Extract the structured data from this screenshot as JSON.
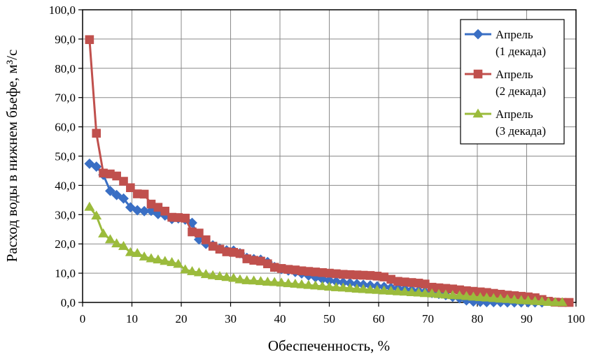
{
  "chart_data": {
    "type": "line",
    "xlabel": "Обеспеченность, %",
    "ylabel": "Расход воды в нижнем бьефе, м³/с",
    "xlim": [
      0,
      100
    ],
    "ylim": [
      0,
      100
    ],
    "x_ticks": [
      "0",
      "10",
      "20",
      "30",
      "40",
      "50",
      "60",
      "70",
      "80",
      "90",
      "100"
    ],
    "y_ticks": [
      "0,0",
      "10,0",
      "20,0",
      "30,0",
      "40,0",
      "50,0",
      "60,0",
      "70,0",
      "80,0",
      "90,0",
      "100,0"
    ],
    "grid": true,
    "legend_position": "top-right",
    "series": [
      {
        "name": "Апрель (1 декада)",
        "legend_lines": [
          "Апрель",
          "(1 декада)"
        ],
        "color": "#3a6fc4",
        "marker": "diamond",
        "points": [
          [
            1.4,
            47.4
          ],
          [
            2.8,
            46.4
          ],
          [
            4.2,
            43.6
          ],
          [
            5.6,
            38.1
          ],
          [
            6.9,
            36.7
          ],
          [
            8.3,
            35.5
          ],
          [
            9.7,
            32.5
          ],
          [
            11.1,
            31.5
          ],
          [
            12.5,
            31.2
          ],
          [
            13.9,
            31.3
          ],
          [
            15.3,
            30.2
          ],
          [
            16.7,
            29.7
          ],
          [
            18.1,
            28.5
          ],
          [
            19.4,
            28.7
          ],
          [
            20.8,
            28.3
          ],
          [
            22.2,
            27.2
          ],
          [
            23.6,
            21.5
          ],
          [
            25.0,
            20.0
          ],
          [
            26.4,
            19.5
          ],
          [
            27.8,
            18.4
          ],
          [
            29.2,
            17.8
          ],
          [
            30.6,
            17.7
          ],
          [
            31.9,
            16.8
          ],
          [
            33.3,
            15.2
          ],
          [
            34.7,
            14.8
          ],
          [
            36.1,
            14.6
          ],
          [
            37.5,
            13.8
          ],
          [
            38.9,
            12.1
          ],
          [
            40.3,
            11.4
          ],
          [
            41.7,
            10.9
          ],
          [
            43.1,
            10.4
          ],
          [
            44.4,
            9.9
          ],
          [
            45.8,
            9.2
          ],
          [
            47.2,
            8.6
          ],
          [
            48.6,
            8.0
          ],
          [
            50.0,
            7.5
          ],
          [
            51.4,
            7.1
          ],
          [
            52.8,
            6.8
          ],
          [
            54.2,
            6.6
          ],
          [
            55.6,
            6.3
          ],
          [
            56.9,
            6.0
          ],
          [
            58.3,
            5.8
          ],
          [
            59.7,
            5.5
          ],
          [
            61.1,
            5.3
          ],
          [
            62.5,
            5.0
          ],
          [
            63.9,
            4.8
          ],
          [
            65.3,
            4.5
          ],
          [
            66.7,
            4.2
          ],
          [
            68.1,
            3.9
          ],
          [
            69.4,
            3.6
          ],
          [
            70.8,
            3.2
          ],
          [
            72.2,
            2.9
          ],
          [
            73.6,
            2.5
          ],
          [
            75.0,
            1.9
          ],
          [
            76.4,
            1.4
          ],
          [
            77.8,
            0.7
          ],
          [
            79.2,
            0.3
          ],
          [
            80.6,
            0.2
          ],
          [
            81.9,
            0.1
          ],
          [
            83.3,
            0.1
          ],
          [
            84.7,
            0.1
          ],
          [
            86.1,
            0.0
          ],
          [
            87.5,
            0.0
          ],
          [
            88.9,
            0.0
          ],
          [
            90.3,
            0.0
          ],
          [
            91.7,
            0.0
          ],
          [
            93.1,
            0.0
          ]
        ]
      },
      {
        "name": "Апрель (2 декада)",
        "legend_lines": [
          "Апрель",
          "(2 декада)"
        ],
        "color": "#c0504d",
        "marker": "square",
        "points": [
          [
            1.4,
            89.8
          ],
          [
            2.8,
            57.8
          ],
          [
            4.2,
            44.2
          ],
          [
            5.6,
            43.9
          ],
          [
            6.9,
            43.2
          ],
          [
            8.3,
            41.4
          ],
          [
            9.7,
            39.2
          ],
          [
            11.1,
            37.1
          ],
          [
            12.5,
            37.0
          ],
          [
            13.9,
            33.6
          ],
          [
            15.3,
            32.5
          ],
          [
            16.7,
            31.2
          ],
          [
            18.1,
            29.1
          ],
          [
            19.4,
            29.0
          ],
          [
            20.8,
            28.8
          ],
          [
            22.2,
            24.1
          ],
          [
            23.6,
            23.7
          ],
          [
            25.0,
            21.4
          ],
          [
            26.4,
            19.2
          ],
          [
            27.8,
            18.2
          ],
          [
            29.2,
            17.3
          ],
          [
            30.6,
            17.1
          ],
          [
            31.9,
            16.7
          ],
          [
            33.3,
            14.9
          ],
          [
            34.7,
            14.4
          ],
          [
            36.1,
            14.1
          ],
          [
            37.5,
            13.2
          ],
          [
            38.9,
            12.0
          ],
          [
            40.3,
            11.6
          ],
          [
            41.7,
            11.3
          ],
          [
            43.1,
            11.1
          ],
          [
            44.4,
            10.8
          ],
          [
            45.8,
            10.6
          ],
          [
            47.2,
            10.4
          ],
          [
            48.6,
            10.2
          ],
          [
            50.0,
            10.0
          ],
          [
            51.4,
            9.8
          ],
          [
            52.8,
            9.6
          ],
          [
            54.2,
            9.5
          ],
          [
            55.6,
            9.4
          ],
          [
            56.9,
            9.3
          ],
          [
            58.3,
            9.2
          ],
          [
            59.7,
            9.0
          ],
          [
            61.1,
            8.7
          ],
          [
            62.5,
            7.9
          ],
          [
            63.9,
            7.2
          ],
          [
            65.3,
            7.0
          ],
          [
            66.7,
            6.8
          ],
          [
            68.1,
            6.6
          ],
          [
            69.4,
            6.3
          ],
          [
            70.8,
            5.2
          ],
          [
            72.2,
            5.0
          ],
          [
            73.6,
            4.8
          ],
          [
            75.0,
            4.6
          ],
          [
            76.4,
            4.3
          ],
          [
            77.8,
            4.0
          ],
          [
            79.2,
            3.8
          ],
          [
            80.6,
            3.6
          ],
          [
            81.9,
            3.4
          ],
          [
            83.3,
            3.1
          ],
          [
            84.7,
            2.8
          ],
          [
            86.1,
            2.5
          ],
          [
            87.5,
            2.3
          ],
          [
            88.9,
            2.1
          ],
          [
            90.3,
            1.9
          ],
          [
            91.7,
            1.6
          ],
          [
            93.1,
            1.0
          ],
          [
            94.4,
            0.4
          ],
          [
            95.8,
            0.1
          ],
          [
            97.2,
            0.0
          ],
          [
            98.6,
            0.0
          ]
        ]
      },
      {
        "name": "Апрель (3 декада)",
        "legend_lines": [
          "Апрель",
          "(3 декада)"
        ],
        "color": "#9bbb3c",
        "marker": "triangle",
        "points": [
          [
            1.4,
            32.6
          ],
          [
            2.8,
            29.6
          ],
          [
            4.2,
            23.5
          ],
          [
            5.6,
            21.5
          ],
          [
            6.9,
            20.1
          ],
          [
            8.3,
            19.2
          ],
          [
            9.7,
            17.1
          ],
          [
            11.1,
            16.8
          ],
          [
            12.5,
            15.6
          ],
          [
            13.9,
            15.0
          ],
          [
            15.3,
            14.6
          ],
          [
            16.7,
            14.1
          ],
          [
            18.1,
            13.7
          ],
          [
            19.4,
            13.1
          ],
          [
            20.8,
            11.2
          ],
          [
            22.2,
            10.6
          ],
          [
            23.6,
            10.2
          ],
          [
            25.0,
            9.6
          ],
          [
            26.4,
            9.2
          ],
          [
            27.8,
            8.9
          ],
          [
            29.2,
            8.6
          ],
          [
            30.6,
            8.3
          ],
          [
            31.9,
            7.8
          ],
          [
            33.3,
            7.5
          ],
          [
            34.7,
            7.4
          ],
          [
            36.1,
            7.2
          ],
          [
            37.5,
            7.0
          ],
          [
            38.9,
            6.9
          ],
          [
            40.3,
            6.7
          ],
          [
            41.7,
            6.5
          ],
          [
            43.1,
            6.3
          ],
          [
            44.4,
            6.1
          ],
          [
            45.8,
            5.9
          ],
          [
            47.2,
            5.7
          ],
          [
            48.6,
            5.5
          ],
          [
            50.0,
            5.3
          ],
          [
            51.4,
            5.1
          ],
          [
            52.8,
            5.0
          ],
          [
            54.2,
            4.8
          ],
          [
            55.6,
            4.6
          ],
          [
            56.9,
            4.5
          ],
          [
            58.3,
            4.3
          ],
          [
            59.7,
            4.2
          ],
          [
            61.1,
            4.0
          ],
          [
            62.5,
            3.9
          ],
          [
            63.9,
            3.7
          ],
          [
            65.3,
            3.6
          ],
          [
            66.7,
            3.4
          ],
          [
            68.1,
            3.3
          ],
          [
            69.4,
            3.1
          ],
          [
            70.8,
            3.0
          ],
          [
            72.2,
            2.8
          ],
          [
            73.6,
            2.6
          ],
          [
            75.0,
            2.4
          ],
          [
            76.4,
            2.3
          ],
          [
            77.8,
            2.1
          ],
          [
            79.2,
            1.9
          ],
          [
            80.6,
            1.7
          ],
          [
            81.9,
            1.6
          ],
          [
            83.3,
            1.4
          ],
          [
            84.7,
            1.2
          ],
          [
            86.1,
            1.1
          ],
          [
            87.5,
            0.9
          ],
          [
            88.9,
            0.7
          ],
          [
            90.3,
            0.6
          ],
          [
            91.7,
            0.4
          ],
          [
            93.1,
            0.3
          ],
          [
            94.4,
            0.1
          ],
          [
            95.8,
            0.0
          ],
          [
            97.2,
            0.0
          ]
        ]
      }
    ]
  }
}
